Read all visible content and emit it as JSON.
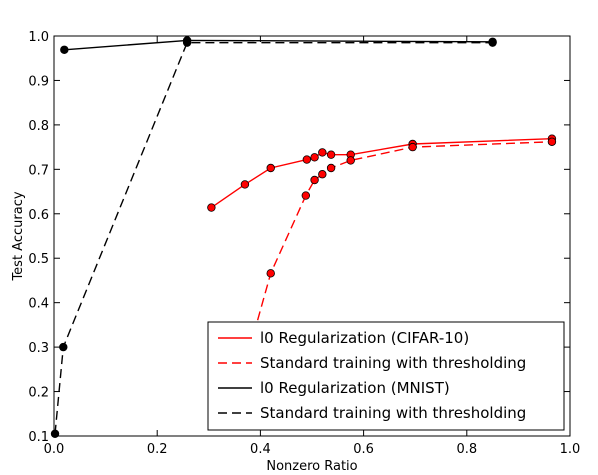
{
  "chart_data": {
    "type": "line",
    "title": "",
    "xlabel": "Nonzero Ratio",
    "ylabel": "Test Accuracy",
    "xlim": [
      0.0,
      1.0
    ],
    "ylim": [
      0.1,
      1.0
    ],
    "xticks": [
      "0.0",
      "0.2",
      "0.4",
      "0.6",
      "0.8",
      "1.0"
    ],
    "yticks": [
      "0.1",
      "0.2",
      "0.3",
      "0.4",
      "0.5",
      "0.6",
      "0.7",
      "0.8",
      "0.9",
      "1.0"
    ],
    "grid": false,
    "legend_position": "bottom-right",
    "series": [
      {
        "name": "l0 Regularization (CIFAR-10)",
        "color": "#ff0000",
        "linestyle": "solid",
        "marker": true,
        "x": [
          0.305,
          0.37,
          0.42,
          0.49,
          0.505,
          0.52,
          0.537,
          0.575,
          0.695,
          0.965
        ],
        "y": [
          0.614,
          0.666,
          0.703,
          0.722,
          0.727,
          0.738,
          0.733,
          0.733,
          0.757,
          0.769
        ]
      },
      {
        "name": "Standard training with thresholding",
        "color": "#ff0000",
        "linestyle": "dashed",
        "marker": true,
        "x": [
          0.38,
          0.42,
          0.488,
          0.505,
          0.52,
          0.537,
          0.575,
          0.695,
          0.965
        ],
        "y": [
          0.3,
          0.466,
          0.641,
          0.676,
          0.689,
          0.703,
          0.72,
          0.75,
          0.762
        ]
      },
      {
        "name": "l0 Regularization (MNIST)",
        "color": "#000000",
        "linestyle": "solid",
        "marker": true,
        "x": [
          0.02,
          0.258,
          0.85
        ],
        "y": [
          0.969,
          0.99,
          0.987
        ]
      },
      {
        "name": "Standard training with thresholding",
        "color": "#000000",
        "linestyle": "dashed",
        "marker": true,
        "x": [
          0.002,
          0.018,
          0.258,
          0.85
        ],
        "y": [
          0.105,
          0.3,
          0.985,
          0.985
        ]
      }
    ]
  }
}
